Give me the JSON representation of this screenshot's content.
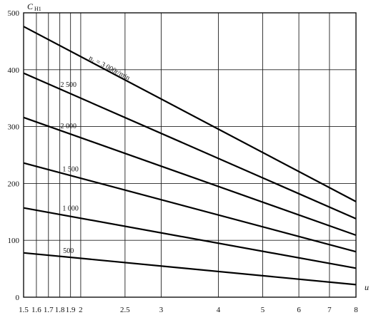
{
  "chart_data": {
    "type": "line",
    "title": "",
    "xlabel": "u",
    "ylabel": "C",
    "ylabel_sub": "H1",
    "x_scale": "log",
    "xlim": [
      1.5,
      8
    ],
    "ylim": [
      0,
      500
    ],
    "grid": true,
    "x_ticks": [
      1.5,
      1.6,
      1.7,
      1.8,
      1.9,
      2,
      2.5,
      3,
      4,
      5,
      6,
      7,
      8
    ],
    "x_tick_labels": [
      "1.5",
      "1.6",
      "1.7",
      "1.8",
      "1.9",
      "2",
      "2.5",
      "3",
      "4",
      "5",
      "6",
      "7",
      "8"
    ],
    "y_ticks": [
      0,
      100,
      200,
      300,
      400,
      500
    ],
    "y_tick_labels": [
      "0",
      "100",
      "200",
      "300",
      "400",
      "500"
    ],
    "series": [
      {
        "name": "n₁ = 3 000r/min",
        "x": [
          1.5,
          8
        ],
        "y": [
          476,
          168
        ]
      },
      {
        "name": "2 500",
        "x": [
          1.5,
          8
        ],
        "y": [
          394,
          138
        ]
      },
      {
        "name": "2 000",
        "x": [
          1.5,
          8
        ],
        "y": [
          316,
          109
        ]
      },
      {
        "name": "1 500",
        "x": [
          1.5,
          8
        ],
        "y": [
          236,
          80
        ]
      },
      {
        "name": "1 000",
        "x": [
          1.5,
          8
        ],
        "y": [
          157,
          51
        ]
      },
      {
        "name": "500",
        "x": [
          1.5,
          8
        ],
        "y": [
          78,
          22
        ]
      }
    ]
  }
}
